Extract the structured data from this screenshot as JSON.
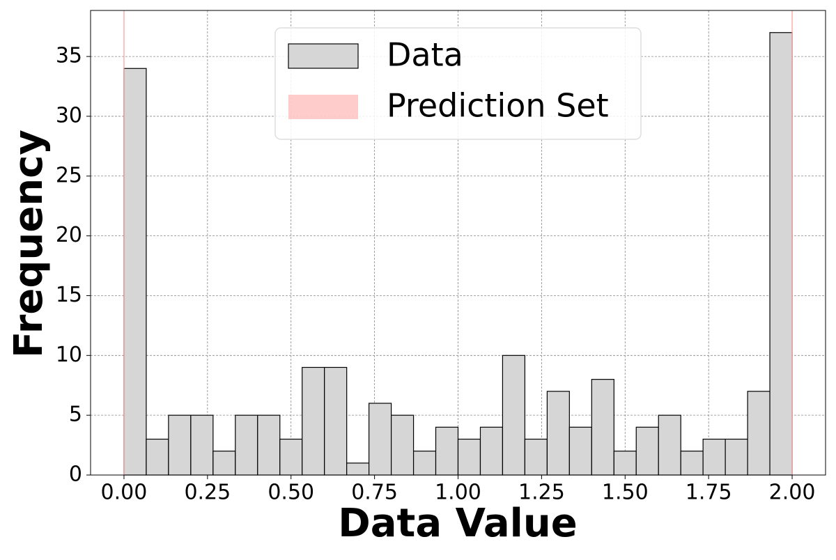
{
  "chart_data": {
    "type": "histogram",
    "x_label": "Data Value",
    "y_label": "Frequency",
    "bins": [
      0,
      0.0667,
      0.1333,
      0.2,
      0.2667,
      0.3333,
      0.4,
      0.4667,
      0.5333,
      0.6,
      0.6667,
      0.7333,
      0.8,
      0.8667,
      0.9333,
      1,
      1.0667,
      1.1333,
      1.2,
      1.2667,
      1.3333,
      1.4,
      1.4667,
      1.5333,
      1.6,
      1.6667,
      1.7333,
      1.8,
      1.8667,
      1.9333,
      2
    ],
    "series": [
      {
        "name": "Data",
        "color": "#d6d6d6",
        "values": [
          34,
          3,
          5,
          5,
          2,
          5,
          5,
          3,
          9,
          9,
          1,
          6,
          5,
          2,
          4,
          3,
          4,
          10,
          3,
          7,
          4,
          8,
          2,
          4,
          5,
          2,
          3,
          3,
          7,
          37
        ]
      },
      {
        "name": "Prediction Set",
        "color": "#ff9999",
        "x": [
          0,
          2
        ]
      }
    ],
    "xlim": [
      -0.1,
      2.1
    ],
    "ylim": [
      0,
      38.85
    ],
    "xticks": [
      {
        "value": 0,
        "label": "0.00"
      },
      {
        "value": 0.25,
        "label": "0.25"
      },
      {
        "value": 0.5,
        "label": "0.50"
      },
      {
        "value": 0.75,
        "label": "0.75"
      },
      {
        "value": 1,
        "label": "1.00"
      },
      {
        "value": 1.25,
        "label": "1.25"
      },
      {
        "value": 1.5,
        "label": "1.50"
      },
      {
        "value": 1.75,
        "label": "1.75"
      },
      {
        "value": 2,
        "label": "2.00"
      }
    ],
    "yticks": [
      0,
      5,
      10,
      15,
      20,
      25,
      30,
      35
    ],
    "grid": true,
    "legend": "upper center"
  }
}
